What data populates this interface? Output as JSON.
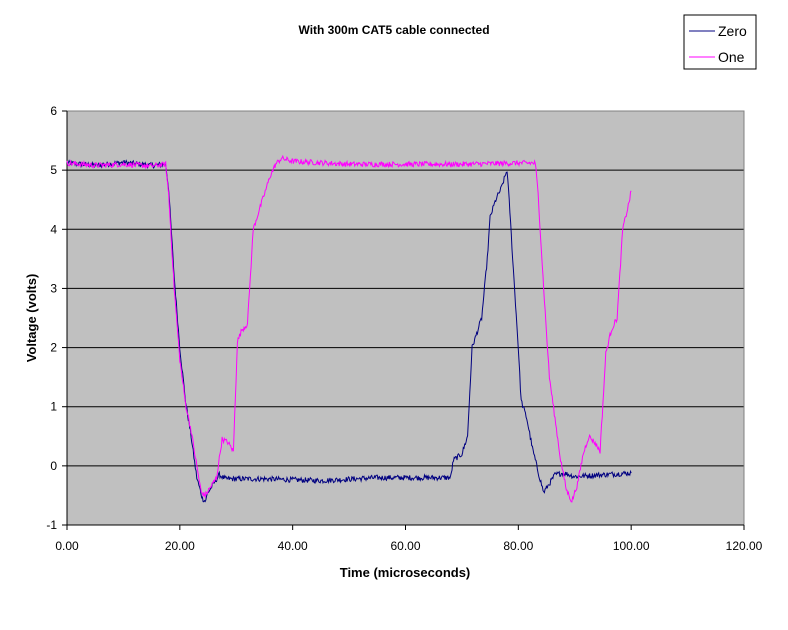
{
  "chart_data": {
    "type": "line",
    "title": "With 300m CAT5 cable connected",
    "xlabel": "Time (microseconds)",
    "ylabel": "Voltage (volts)",
    "xlim": [
      0,
      120
    ],
    "ylim": [
      -1,
      6
    ],
    "x_ticks": [
      "0.00",
      "20.00",
      "40.00",
      "60.00",
      "80.00",
      "100.00",
      "120.00"
    ],
    "y_ticks": [
      "-1",
      "0",
      "1",
      "2",
      "3",
      "4",
      "5",
      "6"
    ],
    "grid": "horizontal",
    "plot_background": "#c0c0c0",
    "legend_position": "top-right",
    "series": [
      {
        "name": "Zero",
        "color": "#000080",
        "points": [
          [
            0,
            5.12
          ],
          [
            5,
            5.08
          ],
          [
            10,
            5.13
          ],
          [
            15,
            5.08
          ],
          [
            17.5,
            5.1
          ],
          [
            18,
            4.7
          ],
          [
            19,
            3.2
          ],
          [
            20,
            2.0
          ],
          [
            21,
            1.1
          ],
          [
            22,
            0.5
          ],
          [
            23,
            -0.2
          ],
          [
            24,
            -0.55
          ],
          [
            24.5,
            -0.6
          ],
          [
            25,
            -0.45
          ],
          [
            26,
            -0.3
          ],
          [
            27,
            -0.15
          ],
          [
            28,
            -0.22
          ],
          [
            35,
            -0.22
          ],
          [
            45,
            -0.25
          ],
          [
            55,
            -0.2
          ],
          [
            65,
            -0.2
          ],
          [
            68,
            -0.2
          ],
          [
            68.5,
            0.1
          ],
          [
            70,
            0.2
          ],
          [
            71,
            0.5
          ],
          [
            71.8,
            2.0
          ],
          [
            72.5,
            2.2
          ],
          [
            73.5,
            2.5
          ],
          [
            74.5,
            3.5
          ],
          [
            75,
            4.2
          ],
          [
            76,
            4.5
          ],
          [
            77,
            4.7
          ],
          [
            78,
            5.0
          ],
          [
            78.5,
            4.3
          ],
          [
            79,
            3.5
          ],
          [
            80,
            2.0
          ],
          [
            80.5,
            1.1
          ],
          [
            81.5,
            0.8
          ],
          [
            82.5,
            0.3
          ],
          [
            83.5,
            -0.1
          ],
          [
            84.5,
            -0.45
          ],
          [
            85.5,
            -0.3
          ],
          [
            86.5,
            -0.15
          ],
          [
            88,
            -0.12
          ],
          [
            90,
            -0.18
          ],
          [
            95,
            -0.15
          ],
          [
            100,
            -0.12
          ]
        ]
      },
      {
        "name": "One",
        "color": "#ff00ff",
        "points": [
          [
            0,
            5.12
          ],
          [
            5,
            5.08
          ],
          [
            10,
            5.1
          ],
          [
            15,
            5.07
          ],
          [
            17.5,
            5.1
          ],
          [
            18,
            4.6
          ],
          [
            19,
            3.0
          ],
          [
            20,
            1.8
          ],
          [
            21,
            1.05
          ],
          [
            22,
            0.6
          ],
          [
            23,
            0.0
          ],
          [
            23.8,
            -0.45
          ],
          [
            24.5,
            -0.5
          ],
          [
            25.5,
            -0.35
          ],
          [
            26.5,
            -0.2
          ],
          [
            27.5,
            0.45
          ],
          [
            28.5,
            0.4
          ],
          [
            29.5,
            0.25
          ],
          [
            30.2,
            2.1
          ],
          [
            31,
            2.3
          ],
          [
            32,
            2.4
          ],
          [
            33,
            4.0
          ],
          [
            34,
            4.3
          ],
          [
            35,
            4.6
          ],
          [
            36,
            4.9
          ],
          [
            37,
            5.1
          ],
          [
            38,
            5.2
          ],
          [
            40,
            5.15
          ],
          [
            50,
            5.1
          ],
          [
            60,
            5.1
          ],
          [
            70,
            5.1
          ],
          [
            80,
            5.12
          ],
          [
            83,
            5.12
          ],
          [
            83.5,
            4.6
          ],
          [
            84.5,
            3.0
          ],
          [
            85.5,
            1.5
          ],
          [
            86.5,
            0.8
          ],
          [
            87.5,
            0.1
          ],
          [
            88.5,
            -0.4
          ],
          [
            89.5,
            -0.6
          ],
          [
            90.5,
            -0.3
          ],
          [
            91.5,
            0.2
          ],
          [
            92.5,
            0.5
          ],
          [
            93.5,
            0.4
          ],
          [
            94.5,
            0.25
          ],
          [
            95.5,
            1.9
          ],
          [
            96.5,
            2.3
          ],
          [
            97.5,
            2.5
          ],
          [
            98.5,
            4.0
          ],
          [
            99.5,
            4.4
          ],
          [
            100,
            4.65
          ]
        ]
      }
    ]
  }
}
